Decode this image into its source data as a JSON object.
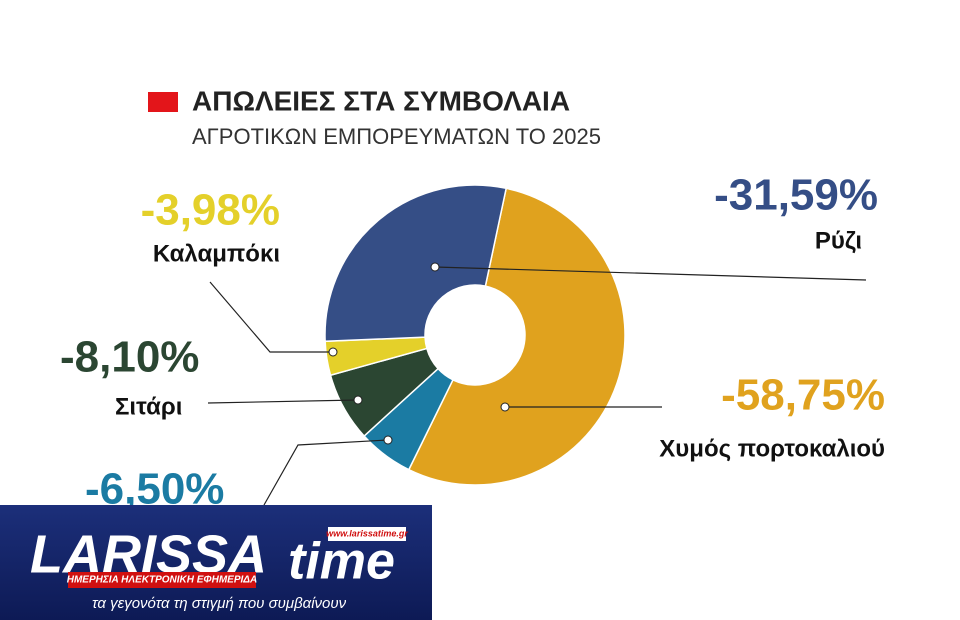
{
  "chart_data": {
    "type": "donut",
    "title": "ΑΠΩΛΕΙΕΣ ΣΤΑ ΣΥΜΒΟΛΑΙΑ",
    "subtitle": "ΑΓΡΟΤΙΚΩΝ ΕΜΠΟΡΕΥΜΑΤΩΝ ΤΟ 2025",
    "categories": [
      "Χυμός πορτοκαλιού",
      null,
      "Σιτάρι",
      "Καλαμπόκι",
      "Ρύζι"
    ],
    "values": [
      -58.75,
      -6.5,
      -8.1,
      -3.98,
      -31.59
    ],
    "value_labels": [
      "-58,75%",
      "-6,50%",
      "-8,10%",
      "-3,98%",
      "-31,59%"
    ],
    "colors": [
      "#e0a21e",
      "#1b7ba3",
      "#2b4632",
      "#e4d02a",
      "#354e86"
    ]
  },
  "logo": {
    "name": "LARISSA",
    "name2": "time",
    "url": "www.larissatime.gr",
    "tagline": "ΗΜΕΡΗΣΙΑ ΗΛΕΚΤΡΟΝΙΚΗ ΕΦΗΜΕΡΙΔΑ",
    "slogan": "τα γεγονότα τη στιγμή που συμβαίνουν"
  }
}
